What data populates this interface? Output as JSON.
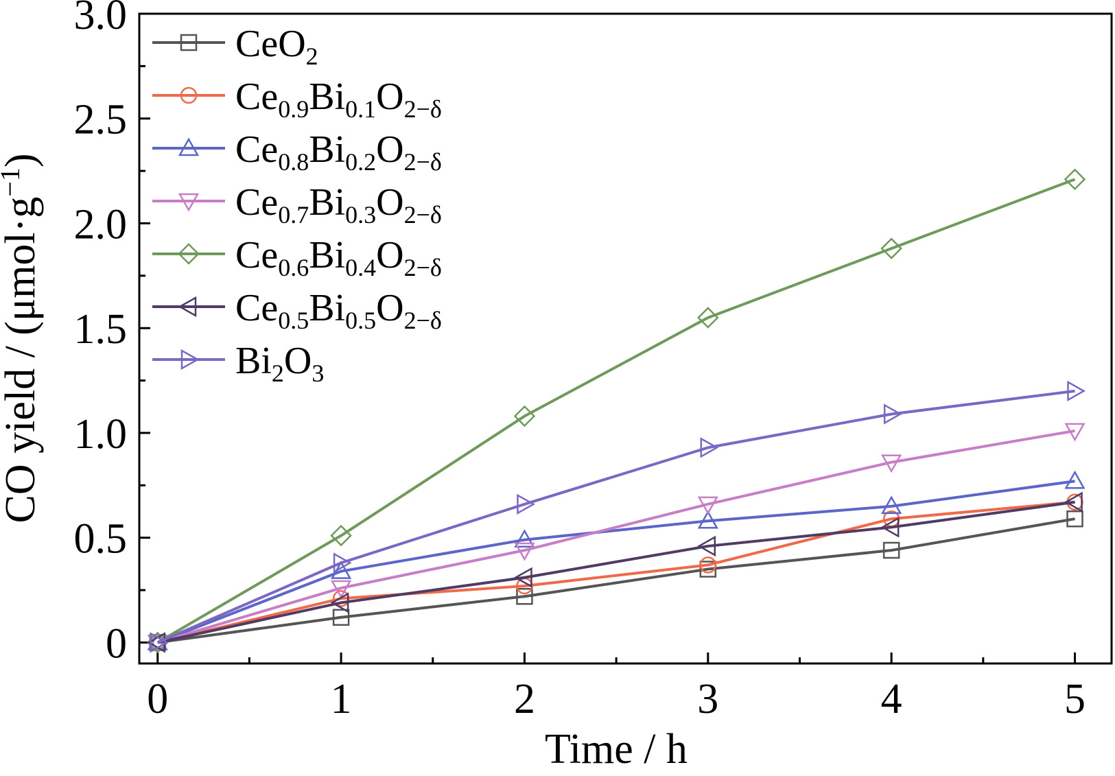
{
  "chart_data": {
    "type": "line",
    "xlabel": "Time / h",
    "ylabel": "CO yield / (μmol·g",
    "ylabel_sup": "−1",
    "ylabel_close": ")",
    "xlim": [
      -0.1,
      5.2
    ],
    "ylim": [
      -0.1,
      3.0
    ],
    "x_ticks": [
      0,
      1,
      2,
      3,
      4,
      5
    ],
    "x_tick_labels": [
      "0",
      "1",
      "2",
      "3",
      "4",
      "5"
    ],
    "y_ticks": [
      0,
      0.5,
      1.0,
      1.5,
      2.0,
      2.5,
      3.0
    ],
    "y_tick_labels": [
      "0",
      "0.5",
      "1.0",
      "1.5",
      "2.0",
      "2.5",
      "3.0"
    ],
    "grid": false,
    "legend_position": "top-left",
    "x": [
      0,
      1,
      2,
      3,
      4,
      5
    ],
    "series": [
      {
        "name": "CeO2",
        "name_parts": [
          [
            "Ce",
            ""
          ],
          [
            "O",
            ""
          ],
          [
            "2",
            "sub"
          ]
        ],
        "marker": "square",
        "color": "#555555",
        "values": [
          0,
          0.12,
          0.22,
          0.35,
          0.44,
          0.59
        ]
      },
      {
        "name": "Ce0.9Bi0.1O2−δ",
        "name_parts": [
          [
            "Ce",
            ""
          ],
          [
            "0.9",
            "sub"
          ],
          [
            "Bi",
            ""
          ],
          [
            "0.1",
            "sub"
          ],
          [
            "O",
            ""
          ],
          [
            "2−δ",
            "sub"
          ]
        ],
        "marker": "circle",
        "color": "#ef6a4a",
        "values": [
          0,
          0.21,
          0.27,
          0.37,
          0.59,
          0.67
        ]
      },
      {
        "name": "Ce0.8Bi0.2O2−δ",
        "name_parts": [
          [
            "Ce",
            ""
          ],
          [
            "0.8",
            "sub"
          ],
          [
            "Bi",
            ""
          ],
          [
            "0.2",
            "sub"
          ],
          [
            "O",
            ""
          ],
          [
            "2−δ",
            "sub"
          ]
        ],
        "marker": "triangle-up",
        "color": "#5b66c8",
        "values": [
          0,
          0.34,
          0.49,
          0.58,
          0.65,
          0.77
        ]
      },
      {
        "name": "Ce0.7Bi0.3O2−δ",
        "name_parts": [
          [
            "Ce",
            ""
          ],
          [
            "0.7",
            "sub"
          ],
          [
            "Bi",
            ""
          ],
          [
            "0.3",
            "sub"
          ],
          [
            "O",
            ""
          ],
          [
            "2−δ",
            "sub"
          ]
        ],
        "marker": "triangle-down",
        "color": "#c87ec7",
        "values": [
          0,
          0.26,
          0.44,
          0.66,
          0.86,
          1.01
        ]
      },
      {
        "name": "Ce0.6Bi0.4O2−δ",
        "name_parts": [
          [
            "Ce",
            ""
          ],
          [
            "0.6",
            "sub"
          ],
          [
            "Bi",
            ""
          ],
          [
            "0.4",
            "sub"
          ],
          [
            "O",
            ""
          ],
          [
            "2−δ",
            "sub"
          ]
        ],
        "marker": "diamond",
        "color": "#6f9a5c",
        "values": [
          0,
          0.51,
          1.08,
          1.55,
          1.88,
          2.21
        ]
      },
      {
        "name": "Ce0.5Bi0.5O2−δ",
        "name_parts": [
          [
            "Ce",
            ""
          ],
          [
            "0.5",
            "sub"
          ],
          [
            "Bi",
            ""
          ],
          [
            "0.5",
            "sub"
          ],
          [
            "O",
            ""
          ],
          [
            "2−δ",
            "sub"
          ]
        ],
        "marker": "triangle-left",
        "color": "#4f3b64",
        "values": [
          0,
          0.19,
          0.31,
          0.46,
          0.55,
          0.67
        ]
      },
      {
        "name": "Bi2O3",
        "name_parts": [
          [
            "Bi",
            ""
          ],
          [
            "2",
            "sub"
          ],
          [
            "O",
            ""
          ],
          [
            "3",
            "sub"
          ]
        ],
        "marker": "triangle-right",
        "color": "#7b67c4",
        "values": [
          0,
          0.38,
          0.66,
          0.93,
          1.09,
          1.2
        ]
      }
    ]
  }
}
